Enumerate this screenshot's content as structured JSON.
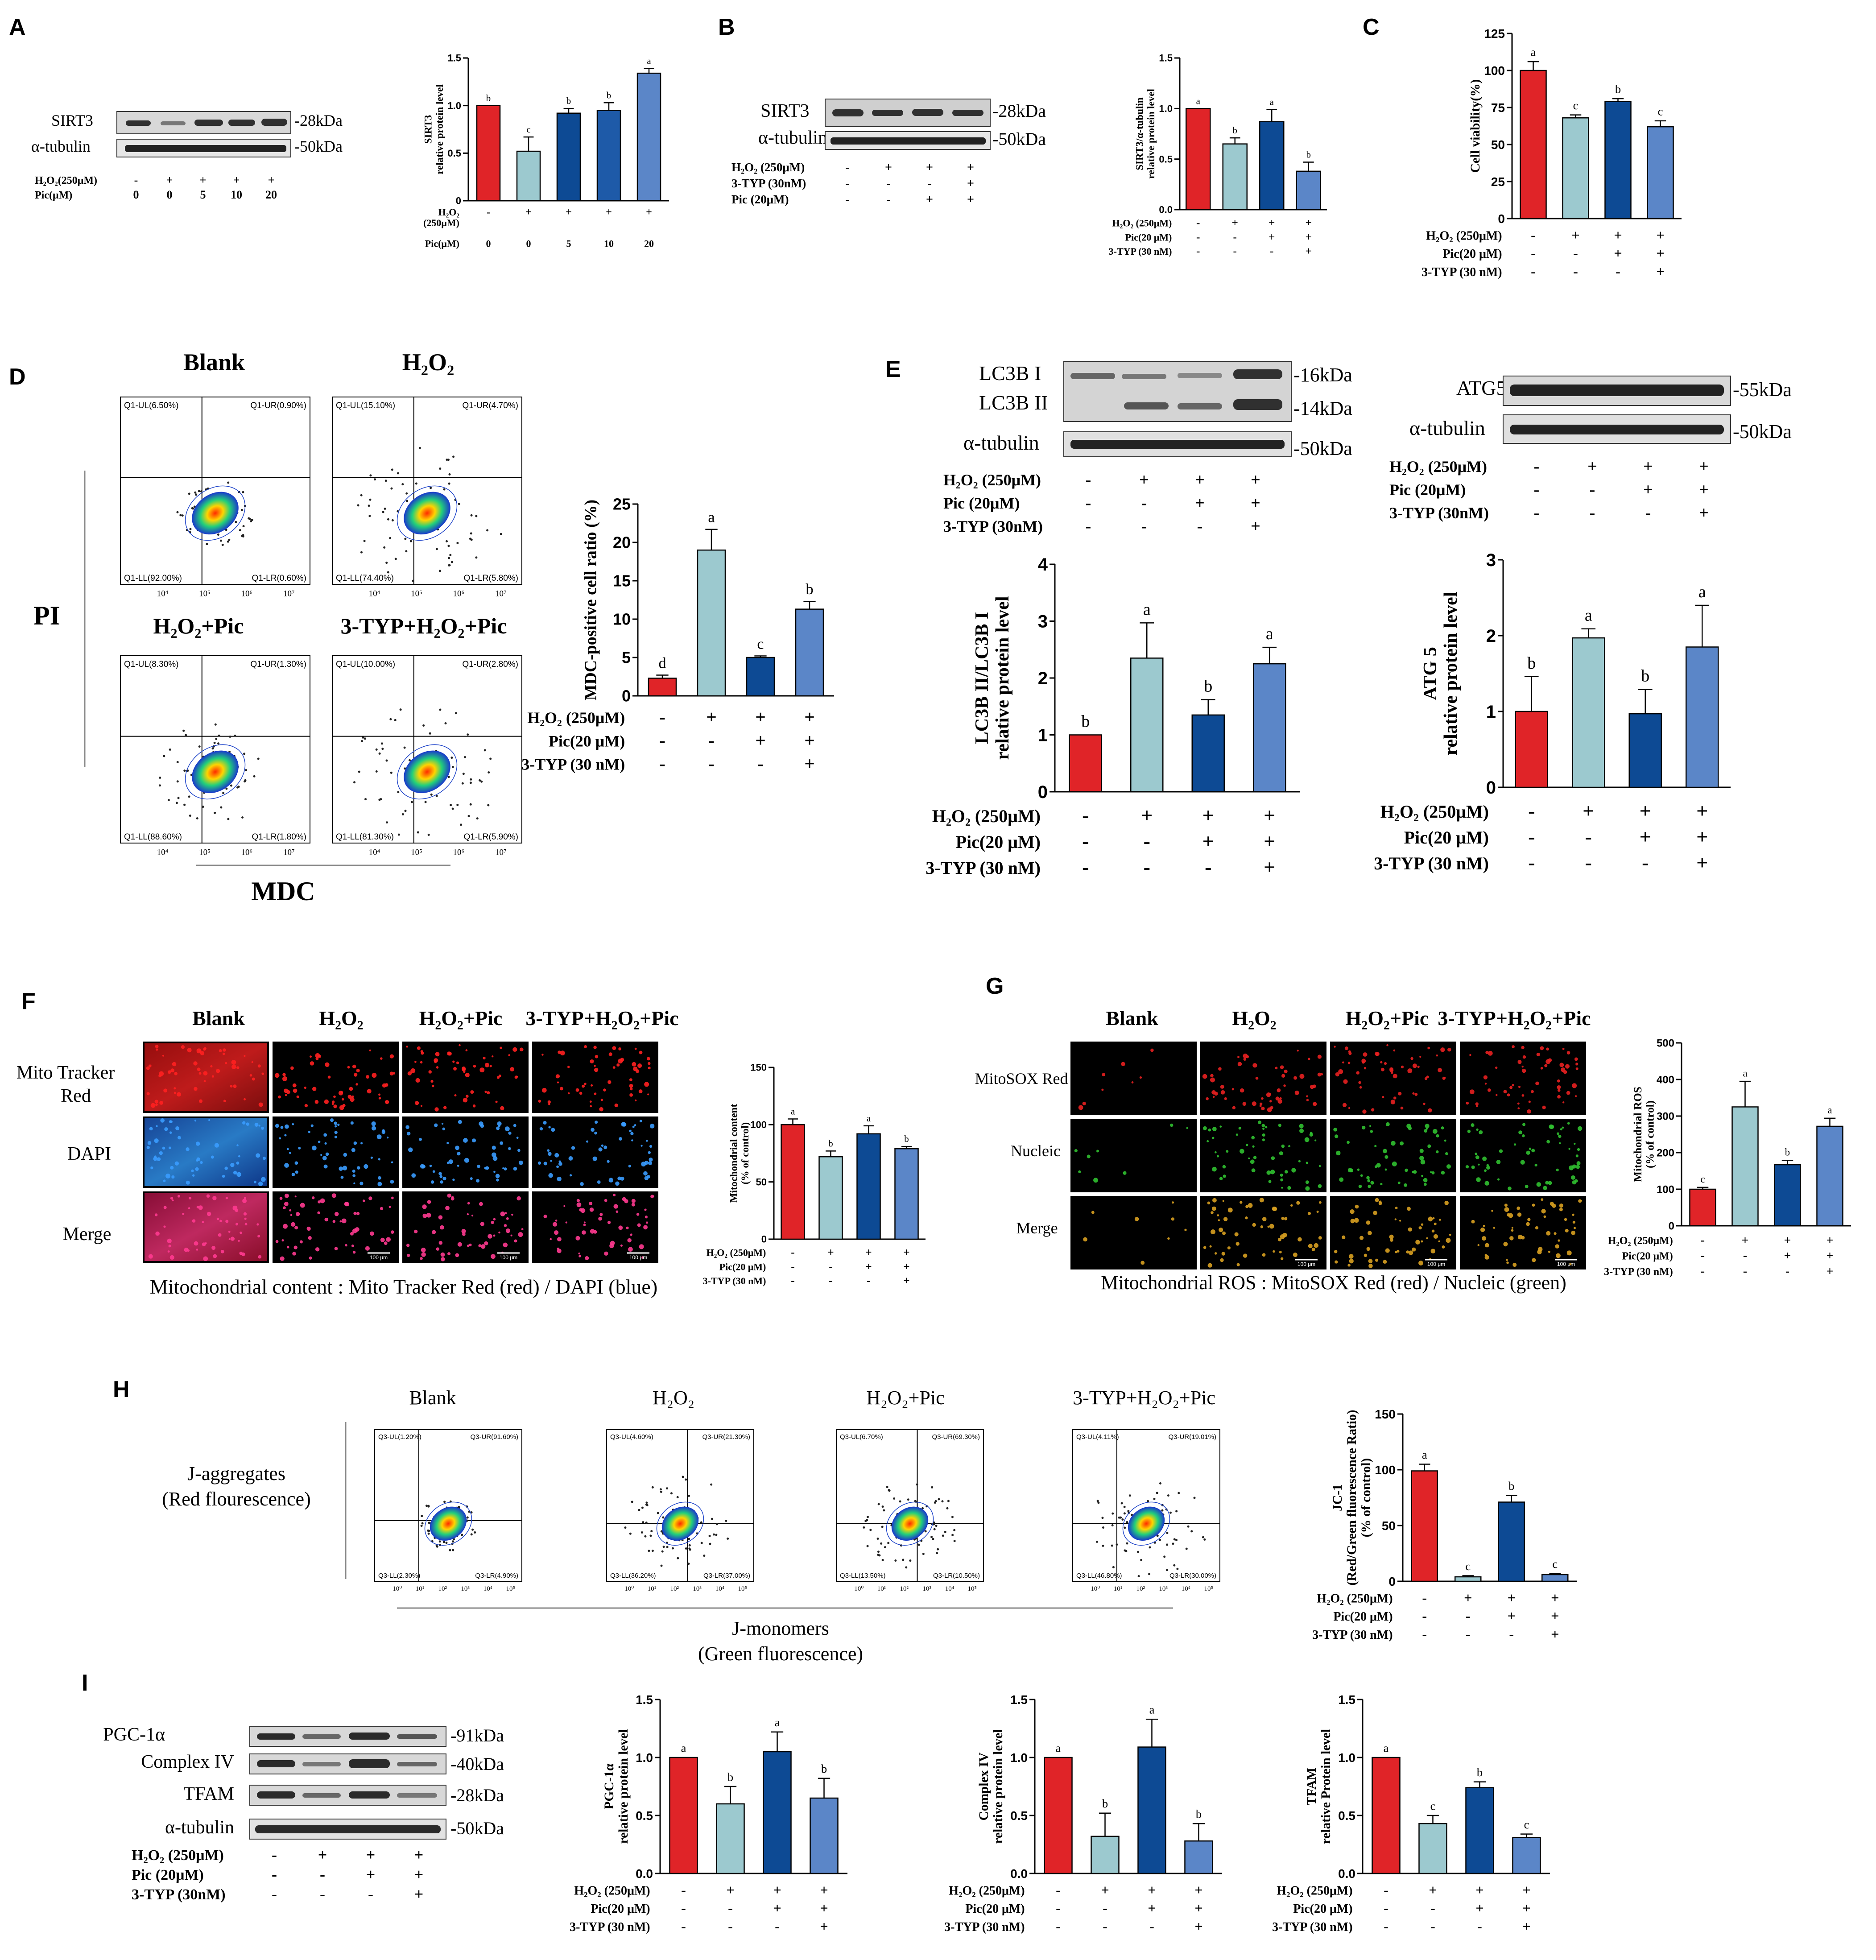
{
  "colors": {
    "c1": "#e02428",
    "c2": "#9cc9cf",
    "c3": "#0d4a94",
    "c4": "#5b86c8"
  },
  "panelLabels": [
    "A",
    "B",
    "C",
    "D",
    "E",
    "F",
    "G",
    "H",
    "I"
  ],
  "ticks": {
    "p0_1": [
      "0",
      "0.5",
      "1.0",
      "1.5"
    ],
    "p0_2": [
      "0.0",
      "0.5",
      "1.0",
      "1.5"
    ],
    "p0_0_25": [
      "0",
      "25",
      "50",
      "75",
      "100",
      "125"
    ],
    "p0_5": [
      "0",
      "5",
      "10",
      "15",
      "20",
      "25"
    ],
    "p0_3": [
      "0",
      "1",
      "2",
      "3",
      "4"
    ],
    "p0_3b": [
      "0",
      "1",
      "2",
      "3"
    ],
    "p0_150": [
      "0",
      "50",
      "100",
      "150"
    ],
    "p0_500": [
      "0",
      "100",
      "200",
      "300",
      "400",
      "500"
    ]
  },
  "common": {
    "h2o2_250": "H₂O₂ (250μM)",
    "pic_20": "Pic(20 μM)",
    "pic_20b": "Pic (20μM)",
    "typ_30": "3-TYP (30 nM)",
    "typ_30b": "3-TYP (30nM)",
    "typ_30c": "3-TYP  (30nM)",
    "h2o2_pic": "H₂O₂+Pic",
    "typ_h2o2_pic": "3-TYP+H₂O₂+Pic",
    "blank": "Blank",
    "h2o2": "H₂O₂",
    "tubulin": "α-tubulin",
    "kda50": "-50kDa",
    "kda28": "-28kDa",
    "plus": "+",
    "minus": "-",
    "scale100": "100 μm"
  },
  "panelA": {
    "blot_labels": [
      "SIRT3",
      "α-tubulin"
    ],
    "kda": [
      "-28kDa",
      "-50kDa"
    ],
    "treat_rows": [
      "H₂O₂(250μM)",
      "Pic(μM)"
    ],
    "treat_vals": [
      [
        "-",
        "+",
        "+",
        "+",
        "+"
      ],
      [
        "0",
        "0",
        "5",
        "10",
        "20"
      ]
    ],
    "chart_rows": [
      "H₂O₂",
      "(250μM)",
      "Pic(μM)"
    ]
  },
  "panelB": {
    "blot_labels": [
      "SIRT3",
      "α-tubulin"
    ],
    "kda": [
      "-28kDa",
      "-50kDa"
    ],
    "treat_rows": [
      "H₂O₂ (250μM)",
      "3-TYP (30nM)",
      "Pic (20μM)"
    ]
  },
  "panelD": {
    "titles": [
      "Blank",
      "H₂O₂",
      "H₂O₂+Pic",
      "3-TYP+H₂O₂+Pic"
    ],
    "yaxis": "PI",
    "xaxis": "MDC",
    "quads": [
      [
        "Q1-UL(6.50%)",
        "Q1-UR(0.90%)",
        "Q1-LL(92.00%)",
        "Q1-LR(0.60%)"
      ],
      [
        "Q1-UL(15.10%)",
        "Q1-UR(4.70%)",
        "Q1-LL(74.40%)",
        "Q1-LR(5.80%)"
      ],
      [
        "Q1-UL(8.30%)",
        "Q1-UR(1.30%)",
        "Q1-LL(88.60%)",
        "Q1-LR(1.80%)"
      ],
      [
        "Q1-UL(10.00%)",
        "Q1-UR(2.80%)",
        "Q1-LL(81.30%)",
        "Q1-LR(5.90%)"
      ]
    ],
    "axis_ticks": [
      "10⁴",
      "10⁵",
      "10⁶",
      "10⁷"
    ]
  },
  "panelE": {
    "blot1_labels": [
      "LC3B I",
      "LC3B II",
      "α-tubulin"
    ],
    "blot1_kda": [
      "-16kDa",
      "-14kDa",
      "-50kDa"
    ],
    "blot2_labels": [
      "ATG5",
      "α-tubulin"
    ],
    "blot2_kda": [
      "-55kDa",
      "-50kDa"
    ],
    "treat_rows": [
      "H₂O₂ (250μM)",
      "Pic (20μM)",
      "3-TYP  (30nM)"
    ]
  },
  "panelF": {
    "col_titles": [
      "Blank",
      "H₂O₂",
      "H₂O₂+Pic",
      "3-TYP+H₂O₂+Pic"
    ],
    "row_labels": [
      "Mito Tracker",
      "Red",
      "DAPI",
      "Merge"
    ],
    "caption": "Mitochondrial content : Mito Tracker Red (red) / DAPI (blue)"
  },
  "panelG": {
    "col_titles": [
      "Blank",
      "H₂O₂",
      "H₂O₂+Pic",
      "3-TYP+H₂O₂+Pic"
    ],
    "row_labels": [
      "MitoSOX Red",
      "Nucleic",
      "Merge"
    ],
    "caption": "Mitochondrial ROS : MitoSOX Red (red) / Nucleic (green)"
  },
  "panelH": {
    "titles": [
      "Blank",
      "H₂O₂",
      "H₂O₂+Pic",
      "3-TYP+H₂O₂+Pic"
    ],
    "ylabel": [
      "J-aggregates",
      "(Red flourescence)"
    ],
    "xlabel": [
      "J-monomers",
      "(Green fluorescence)"
    ],
    "quads": [
      [
        "Q3-UL(1.20%)",
        "Q3-UR(91.60%)",
        "Q3-LL(2.30%)",
        "Q3-LR(4.90%)"
      ],
      [
        "Q3-UL(4.60%)",
        "Q3-UR(21.30%)",
        "Q3-LL(36.20%)",
        "Q3-LR(37.00%)"
      ],
      [
        "Q3-UL(6.70%)",
        "Q3-UR(69.30%)",
        "Q3-LL(13.50%)",
        "Q3-LR(10.50%)"
      ],
      [
        "Q3-UL(4.11%)",
        "Q3-UR(19.01%)",
        "Q3-LL(46.80%)",
        "Q3-LR(30.00%)"
      ]
    ],
    "axis_ticks": [
      "10⁰",
      "10¹",
      "10²",
      "10³",
      "10⁴",
      "10⁵"
    ]
  },
  "panelI": {
    "blot_labels": [
      "PGC-1α",
      "Complex IV",
      "TFAM",
      "α-tubulin"
    ],
    "kda": [
      "-91kDa",
      "-40kDa",
      "-28kDa",
      "-50kDa"
    ],
    "treat_rows": [
      "H₂O₂ (250μM)",
      "Pic (20μM)",
      "3-TYP (30nM)"
    ]
  },
  "chart_data": [
    {
      "id": "A",
      "type": "bar",
      "categories": [
        "0",
        "0",
        "5",
        "10",
        "20"
      ],
      "values": [
        1.0,
        0.52,
        0.92,
        0.95,
        1.34
      ],
      "errors": [
        0.0,
        0.15,
        0.05,
        0.08,
        0.05
      ],
      "letters": [
        "b",
        "c",
        "b",
        "b",
        "a"
      ],
      "ylabel": "SIRT3 relative protein level",
      "ylim": [
        0,
        1.5
      ]
    },
    {
      "id": "B",
      "type": "bar",
      "categories": [
        "Blank",
        "H2O2",
        "H2O2+Pic",
        "3-TYP+H2O2+Pic"
      ],
      "values": [
        1.0,
        0.65,
        0.87,
        0.38
      ],
      "errors": [
        0.0,
        0.06,
        0.12,
        0.09
      ],
      "letters": [
        "a",
        "b",
        "a",
        "b"
      ],
      "ylabel": "SIRT3/α-tubulin relative protein level",
      "ylim": [
        0,
        1.5
      ]
    },
    {
      "id": "C",
      "type": "bar",
      "categories": [
        "Blank",
        "H2O2",
        "H2O2+Pic",
        "3-TYP+H2O2+Pic"
      ],
      "values": [
        100,
        68,
        79,
        62
      ],
      "errors": [
        6,
        2,
        2,
        4
      ],
      "letters": [
        "a",
        "c",
        "b",
        "c"
      ],
      "ylabel": "Cell viability(%)",
      "ylim": [
        0,
        125
      ]
    },
    {
      "id": "D",
      "type": "bar",
      "categories": [
        "Blank",
        "H2O2",
        "H2O2+Pic",
        "3-TYP+H2O2+Pic"
      ],
      "values": [
        2.3,
        19.0,
        5.0,
        11.3
      ],
      "errors": [
        0.4,
        2.7,
        0.2,
        1.0
      ],
      "letters": [
        "d",
        "a",
        "c",
        "b"
      ],
      "ylabel": "MDC-positive cell ratio (%)",
      "ylim": [
        0,
        25
      ]
    },
    {
      "id": "E1",
      "type": "bar",
      "categories": [
        "Blank",
        "H2O2",
        "H2O2+Pic",
        "3-TYP+H2O2+Pic"
      ],
      "values": [
        1.0,
        2.35,
        1.35,
        2.25
      ],
      "errors": [
        0.0,
        0.62,
        0.27,
        0.29
      ],
      "letters": [
        "b",
        "a",
        "b",
        "a"
      ],
      "ylabel": "LC3B II/LC3B I relative protein level",
      "ylim": [
        0,
        4
      ]
    },
    {
      "id": "E2",
      "type": "bar",
      "categories": [
        "Blank",
        "H2O2",
        "H2O2+Pic",
        "3-TYP+H2O2+Pic"
      ],
      "values": [
        1.0,
        1.97,
        0.97,
        1.85
      ],
      "errors": [
        0.46,
        0.12,
        0.32,
        0.55
      ],
      "letters": [
        "b",
        "a",
        "b",
        "a"
      ],
      "ylabel": "ATG 5 relative protein level",
      "ylim": [
        0,
        3
      ]
    },
    {
      "id": "F",
      "type": "bar",
      "categories": [
        "Blank",
        "H2O2",
        "H2O2+Pic",
        "3-TYP+H2O2+Pic"
      ],
      "values": [
        100,
        72,
        92,
        79
      ],
      "errors": [
        5,
        5,
        7,
        2
      ],
      "letters": [
        "a",
        "b",
        "a",
        "b"
      ],
      "ylabel": "Mitochondrial content (% of control)",
      "ylim": [
        0,
        150
      ]
    },
    {
      "id": "G",
      "type": "bar",
      "categories": [
        "Blank",
        "H2O2",
        "H2O2+Pic",
        "3-TYP+H2O2+Pic"
      ],
      "values": [
        100,
        325,
        167,
        272
      ],
      "errors": [
        5,
        70,
        12,
        22
      ],
      "letters": [
        "c",
        "a",
        "b",
        "a"
      ],
      "ylabel": "Mitochondrial ROS (% of control)",
      "ylim": [
        0,
        500
      ]
    },
    {
      "id": "H",
      "type": "bar",
      "categories": [
        "Blank",
        "H2O2",
        "H2O2+Pic",
        "3-TYP+H2O2+Pic"
      ],
      "values": [
        99,
        4,
        71,
        6
      ],
      "errors": [
        6,
        1,
        6,
        1
      ],
      "letters": [
        "a",
        "c",
        "b",
        "c"
      ],
      "ylabel": "JC-1 (Red/Green fluorescence Ratio) (% of control)",
      "ylim": [
        0,
        150
      ]
    },
    {
      "id": "I1",
      "type": "bar",
      "categories": [
        "Blank",
        "H2O2",
        "H2O2+Pic",
        "3-TYP+H2O2+Pic"
      ],
      "values": [
        1.0,
        0.6,
        1.05,
        0.65
      ],
      "errors": [
        0.0,
        0.15,
        0.17,
        0.17
      ],
      "letters": [
        "a",
        "b",
        "a",
        "b"
      ],
      "ylabel": "PGC-1α relative protein level",
      "ylim": [
        0,
        1.5
      ]
    },
    {
      "id": "I2",
      "type": "bar",
      "categories": [
        "Blank",
        "H2O2",
        "H2O2+Pic",
        "3-TYP+H2O2+Pic"
      ],
      "values": [
        1.0,
        0.32,
        1.09,
        0.28
      ],
      "errors": [
        0.0,
        0.2,
        0.24,
        0.15
      ],
      "letters": [
        "a",
        "b",
        "a",
        "b"
      ],
      "ylabel": "Complex IV relative protein level",
      "ylim": [
        0,
        1.5
      ]
    },
    {
      "id": "I3",
      "type": "bar",
      "categories": [
        "Blank",
        "H2O2",
        "H2O2+Pic",
        "3-TYP+H2O2+Pic"
      ],
      "values": [
        1.0,
        0.43,
        0.74,
        0.31
      ],
      "errors": [
        0.0,
        0.07,
        0.05,
        0.03
      ],
      "letters": [
        "a",
        "c",
        "b",
        "c"
      ],
      "ylabel": "TFAM relative Protein level",
      "ylim": [
        0,
        1.5
      ]
    }
  ]
}
